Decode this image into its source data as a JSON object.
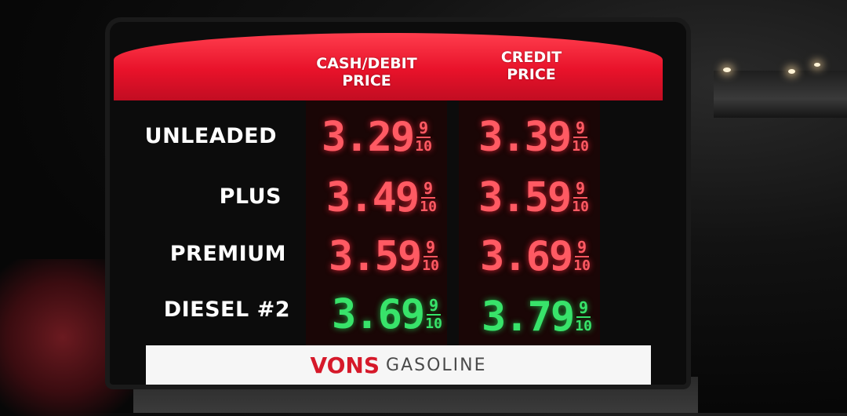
{
  "sign": {
    "headers": {
      "cash_line1": "CASH/DEBIT",
      "cash_line2": "PRICE",
      "credit_line1": "CREDIT",
      "credit_line2": "PRICE"
    },
    "rows": [
      {
        "grade": "UNLEADED",
        "cash": "3.29",
        "credit": "3.39",
        "color": "#ff5a63"
      },
      {
        "grade": "PLUS",
        "cash": "3.49",
        "credit": "3.59",
        "color": "#ff5a63"
      },
      {
        "grade": "PREMIUM",
        "cash": "3.59",
        "credit": "3.69",
        "color": "#ff5a63"
      },
      {
        "grade": "DIESEL #2",
        "cash": "3.69",
        "credit": "3.79",
        "color": "#38e36a"
      }
    ],
    "fraction": {
      "numerator": "9",
      "denominator": "10"
    },
    "footer": {
      "brand": "VONS",
      "sub": "GASOLINE"
    }
  },
  "colors": {
    "header_red": "#e8122a",
    "led_red": "#ff5a63",
    "led_green": "#38e36a"
  }
}
